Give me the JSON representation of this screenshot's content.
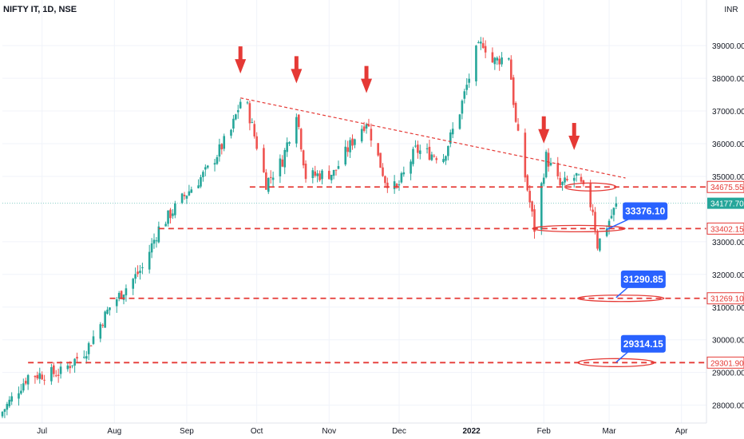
{
  "symbol_label": "NIFTY IT, 1D, NSE",
  "currency_label": "INR",
  "colors": {
    "up": "#26a69a",
    "down": "#ef5350",
    "level": "#e53935",
    "callout": "#2962ff",
    "price_tag": "#26a69a",
    "arrow": "#e53935"
  },
  "chart_data": {
    "type": "candlestick",
    "title": "NIFTY IT, 1D, NSE",
    "ylim": [
      27600,
      40200
    ],
    "y_ticks": [
      {
        "value": 39000,
        "label": "39000.00"
      },
      {
        "value": 38000,
        "label": "38000.00"
      },
      {
        "value": 37000,
        "label": "37000.00"
      },
      {
        "value": 36000,
        "label": "36000.00"
      },
      {
        "value": 35000,
        "label": "35000.00"
      },
      {
        "value": 33000,
        "label": "33000.00"
      },
      {
        "value": 32000,
        "label": "32000.00"
      },
      {
        "value": 31000,
        "label": "31000.00"
      },
      {
        "value": 30000,
        "label": "30000.00"
      },
      {
        "value": 29000,
        "label": "29000.00"
      },
      {
        "value": 28000,
        "label": "28000.00"
      }
    ],
    "x_ticks": [
      "Jul",
      "Aug",
      "Sep",
      "Oct",
      "Nov",
      "Dec",
      "2022",
      "Feb",
      "Mar",
      "Apr"
    ],
    "x_tick_bold": "2022",
    "series_close_points": [
      {
        "date": "2021-06-14",
        "close": 27800
      },
      {
        "date": "2021-06-25",
        "close": 28900
      },
      {
        "date": "2021-07-09",
        "close": 29000
      },
      {
        "date": "2021-07-20",
        "close": 29700
      },
      {
        "date": "2021-07-30",
        "close": 31000
      },
      {
        "date": "2021-08-13",
        "close": 32200
      },
      {
        "date": "2021-08-20",
        "close": 33400
      },
      {
        "date": "2021-08-31",
        "close": 34400
      },
      {
        "date": "2021-09-10",
        "close": 35200
      },
      {
        "date": "2021-09-20",
        "close": 36400
      },
      {
        "date": "2021-09-24",
        "close": 37300
      },
      {
        "date": "2021-09-27",
        "close": 37100
      },
      {
        "date": "2021-10-05",
        "close": 34800
      },
      {
        "date": "2021-10-12",
        "close": 35500
      },
      {
        "date": "2021-10-18",
        "close": 37000
      },
      {
        "date": "2021-10-22",
        "close": 35000
      },
      {
        "date": "2021-11-03",
        "close": 35100
      },
      {
        "date": "2021-11-12",
        "close": 36200
      },
      {
        "date": "2021-11-17",
        "close": 36700
      },
      {
        "date": "2021-11-25",
        "close": 34900
      },
      {
        "date": "2021-11-30",
        "close": 34600
      },
      {
        "date": "2021-12-08",
        "close": 35800
      },
      {
        "date": "2021-12-20",
        "close": 35600
      },
      {
        "date": "2021-12-27",
        "close": 37000
      },
      {
        "date": "2022-01-03",
        "close": 38800
      },
      {
        "date": "2022-01-06",
        "close": 39100
      },
      {
        "date": "2022-01-10",
        "close": 38500
      },
      {
        "date": "2022-01-17",
        "close": 38700
      },
      {
        "date": "2022-01-20",
        "close": 36600
      },
      {
        "date": "2022-01-24",
        "close": 35000
      },
      {
        "date": "2022-01-28",
        "close": 33400
      },
      {
        "date": "2022-02-02",
        "close": 35600
      },
      {
        "date": "2022-02-08",
        "close": 34700
      },
      {
        "date": "2022-02-15",
        "close": 35000
      },
      {
        "date": "2022-02-22",
        "close": 34000
      },
      {
        "date": "2022-02-24",
        "close": 32900
      },
      {
        "date": "2022-03-02",
        "close": 33800
      },
      {
        "date": "2022-03-04",
        "close": 34100
      }
    ],
    "trendline": {
      "start": {
        "date": "2021-09-24",
        "value": 37400
      },
      "end": {
        "date": "2022-03-08",
        "value": 34950
      }
    },
    "levels": [
      {
        "value": 34675.55,
        "label": "34675.55",
        "start_date": "2021-09-28"
      },
      {
        "value": 33402.15,
        "label": "33402.15",
        "start_date": "2021-08-20"
      },
      {
        "value": 31269.1,
        "label": "31269.10",
        "start_date": "2021-07-30"
      },
      {
        "value": 29301.9,
        "label": "29301.90",
        "start_date": "2021-06-25"
      }
    ],
    "last_price": {
      "value": 34177.7,
      "label": "34177.70"
    },
    "callouts": [
      {
        "label": "33376.10",
        "value": 33376.1,
        "date": "2022-02-28"
      },
      {
        "label": "31290.85",
        "value": 31290.85,
        "date": "2022-03-04"
      },
      {
        "label": "29314.15",
        "value": 29314.15,
        "date": "2022-03-04"
      }
    ],
    "top_arrows": [
      {
        "date": "2021-09-24"
      },
      {
        "date": "2021-10-18"
      },
      {
        "date": "2021-11-17"
      },
      {
        "date": "2022-02-01"
      },
      {
        "date": "2022-02-14"
      }
    ]
  }
}
